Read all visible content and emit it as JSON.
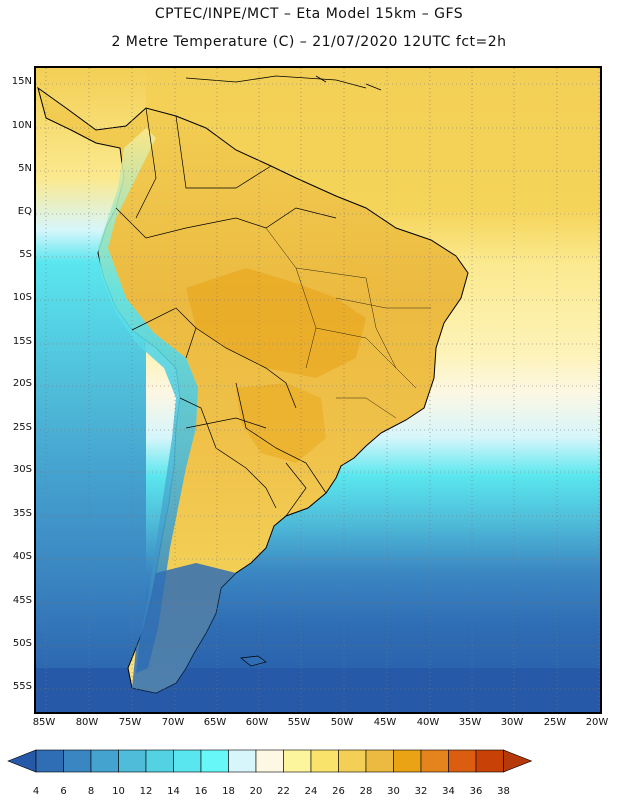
{
  "header": {
    "line1": "CPTEC/INPE/MCT –  Eta Model 15km – GFS",
    "line2": "2 Metre Temperature (C) – 21/07/2020 12UTC fct=2h"
  },
  "map": {
    "lat_labels": [
      "15N",
      "10N",
      "5N",
      "EQ",
      "5S",
      "10S",
      "15S",
      "20S",
      "25S",
      "30S",
      "35S",
      "40S",
      "45S",
      "50S",
      "55S"
    ],
    "lon_labels": [
      "85W",
      "80W",
      "75W",
      "70W",
      "65W",
      "60W",
      "55W",
      "50W",
      "45W",
      "40W",
      "35W",
      "30W",
      "25W",
      "20W"
    ]
  },
  "colorbar": {
    "labels": [
      "4",
      "6",
      "8",
      "10",
      "12",
      "14",
      "16",
      "18",
      "20",
      "22",
      "24",
      "26",
      "28",
      "30",
      "32",
      "34",
      "36",
      "38"
    ],
    "colors": [
      "#2659a8",
      "#2f6db4",
      "#3a86c2",
      "#45a3d0",
      "#4fbcd9",
      "#53d2e3",
      "#5ae6ee",
      "#68f7f9",
      "#d6f6fb",
      "#fdf7e3",
      "#fdf49e",
      "#f9e36a",
      "#f3cf55",
      "#ecba40",
      "#e9a315",
      "#e5831c",
      "#db5e10",
      "#c84207",
      "#b5390a"
    ]
  }
}
